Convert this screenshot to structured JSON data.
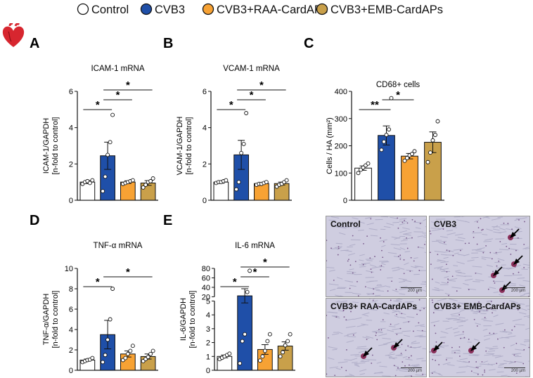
{
  "legend": [
    {
      "label": "Control",
      "color": "#ffffff"
    },
    {
      "label": "CVB3",
      "color": "#1f4fa8"
    },
    {
      "label": "CVB3+RAA-CardAPs",
      "color": "#f7a234"
    },
    {
      "label": "CVB3+EMB-CardAPs",
      "color": "#c9a04a"
    }
  ],
  "colors": {
    "control": "#ffffff",
    "cvb3": "#1f4fa8",
    "raa": "#f7a234",
    "emb": "#c9a04a",
    "heart": "#d7262f"
  },
  "icons": {
    "heart": "heart-icon"
  },
  "chart_data": [
    {
      "panel": "A",
      "type": "bar",
      "title": "ICAM-1 mRNA",
      "ylabel": [
        "ICAM-1/GAPDH",
        "[n-fold to control]"
      ],
      "ylim": [
        0,
        6
      ],
      "yticks": [
        0,
        2,
        4,
        6
      ],
      "categories": [
        "Control",
        "CVB3",
        "CVB3+RAA-CardAPs",
        "CVB3+EMB-CardAPs"
      ],
      "values": [
        1.0,
        2.45,
        1.0,
        0.95
      ],
      "sem": [
        0.08,
        0.75,
        0.07,
        0.13
      ],
      "points": [
        [
          0.9,
          1.0,
          1.05,
          0.95,
          1.1
        ],
        [
          0.5,
          1.3,
          2.5,
          3.2,
          4.7
        ],
        [
          0.9,
          0.95,
          1.0,
          1.05,
          1.1
        ],
        [
          0.7,
          0.85,
          1.0,
          1.05,
          1.2
        ]
      ],
      "significance": [
        {
          "from": 0,
          "to": 1,
          "label": "*"
        },
        {
          "from": 1,
          "to": 2,
          "label": "*"
        },
        {
          "from": 1,
          "to": 3,
          "label": "*"
        }
      ]
    },
    {
      "panel": "B",
      "type": "bar",
      "title": "VCAM-1 mRNA",
      "ylabel": [
        "VCAM-1/GAPDH",
        "[n-fold to control]"
      ],
      "ylim": [
        0,
        6
      ],
      "yticks": [
        0,
        2,
        4,
        6
      ],
      "categories": [
        "Control",
        "CVB3",
        "CVB3+RAA-CardAPs",
        "CVB3+EMB-CardAPs"
      ],
      "values": [
        1.0,
        2.5,
        0.92,
        0.92
      ],
      "sem": [
        0.06,
        0.8,
        0.04,
        0.08
      ],
      "points": [
        [
          0.95,
          1.0,
          1.0,
          1.05,
          1.1
        ],
        [
          0.6,
          1.0,
          2.6,
          3.1,
          4.8
        ],
        [
          0.85,
          0.9,
          0.9,
          0.95,
          1.0
        ],
        [
          0.75,
          0.85,
          0.9,
          1.0,
          1.1
        ]
      ],
      "significance": [
        {
          "from": 0,
          "to": 1,
          "label": "*"
        },
        {
          "from": 1,
          "to": 2,
          "label": "*"
        },
        {
          "from": 1,
          "to": 3,
          "label": "*"
        }
      ]
    },
    {
      "panel": "C",
      "type": "bar",
      "title": "CD68+ cells",
      "ylabel": [
        "Cells / HA (mm²)"
      ],
      "ylim": [
        0,
        400
      ],
      "yticks": [
        0,
        100,
        200,
        300,
        400
      ],
      "categories": [
        "Control",
        "CVB3",
        "CVB3+RAA-CardAPs",
        "CVB3+EMB-CardAPs"
      ],
      "values": [
        118,
        238,
        162,
        213
      ],
      "sem": [
        8,
        35,
        10,
        38
      ],
      "points": [
        [
          100,
          112,
          120,
          128,
          135
        ],
        [
          185,
          215,
          240,
          260,
          375
        ],
        [
          145,
          155,
          165,
          170,
          180
        ],
        [
          140,
          175,
          220,
          240,
          290
        ]
      ],
      "significance": [
        {
          "from": 0,
          "to": 1,
          "label": "**"
        },
        {
          "from": 1,
          "to": 2,
          "label": "*"
        }
      ]
    },
    {
      "panel": "D",
      "type": "bar",
      "title": "TNF-α mRNA",
      "ylabel": [
        "TNF-α/GAPDH",
        "[n-fold to control]"
      ],
      "ylim": [
        0,
        10
      ],
      "yticks": [
        0,
        2,
        4,
        6,
        8,
        10
      ],
      "categories": [
        "Control",
        "CVB3",
        "CVB3+RAA-CardAPs",
        "CVB3+EMB-CardAPs"
      ],
      "values": [
        1.0,
        3.5,
        1.6,
        1.35
      ],
      "sem": [
        0.1,
        1.4,
        0.3,
        0.25
      ],
      "points": [
        [
          0.8,
          0.9,
          1.0,
          1.05,
          1.2
        ],
        [
          0.8,
          1.5,
          3.0,
          5.0,
          8.0
        ],
        [
          1.0,
          1.2,
          1.6,
          1.9,
          2.4
        ],
        [
          0.9,
          1.1,
          1.3,
          1.6,
          1.9
        ]
      ],
      "significance": [
        {
          "from": 0,
          "to": 1,
          "label": "*"
        },
        {
          "from": 1,
          "to": 3,
          "label": "*"
        }
      ]
    },
    {
      "panel": "E",
      "type": "bar",
      "title": "IL-6 mRNA",
      "ylabel": [
        "IL-6/GAPDH",
        "[n-fold to control]"
      ],
      "ylim": [
        0,
        80
      ],
      "axis_break": [
        5,
        20
      ],
      "yticks": [
        0,
        1,
        2,
        3,
        4,
        5,
        20,
        40,
        60,
        80
      ],
      "categories": [
        "Control",
        "CVB3",
        "CVB3+RAA-CardAPs",
        "CVB3+EMB-CardAPs"
      ],
      "values": [
        1.0,
        22,
        1.5,
        1.75
      ],
      "sem": [
        0.1,
        15,
        0.35,
        0.3
      ],
      "points": [
        [
          0.8,
          0.9,
          1.0,
          1.1,
          1.2
        ],
        [
          0.5,
          2.1,
          2.6,
          30,
          75
        ],
        [
          0.7,
          1.0,
          1.4,
          2.1,
          2.6
        ],
        [
          1.0,
          1.3,
          1.8,
          2.1,
          2.6
        ]
      ],
      "significance": [
        {
          "from": 0,
          "to": 1,
          "label": "*"
        },
        {
          "from": 1,
          "to": 2,
          "label": "*"
        },
        {
          "from": 1,
          "to": 3,
          "label": "*"
        }
      ]
    }
  ],
  "panel_letters": [
    "A",
    "B",
    "C",
    "D",
    "E"
  ],
  "micrographs": [
    {
      "label": "Control",
      "scale": "200 µm",
      "arrows": 0
    },
    {
      "label": "CVB3",
      "scale": "200 µm",
      "arrows": 4
    },
    {
      "label": "CVB3+ RAA-CardAPs",
      "scale": "200 µm",
      "arrows": 2
    },
    {
      "label": "CVB3+ EMB-CardAPs",
      "scale": "200 µm",
      "arrows": 2
    }
  ]
}
